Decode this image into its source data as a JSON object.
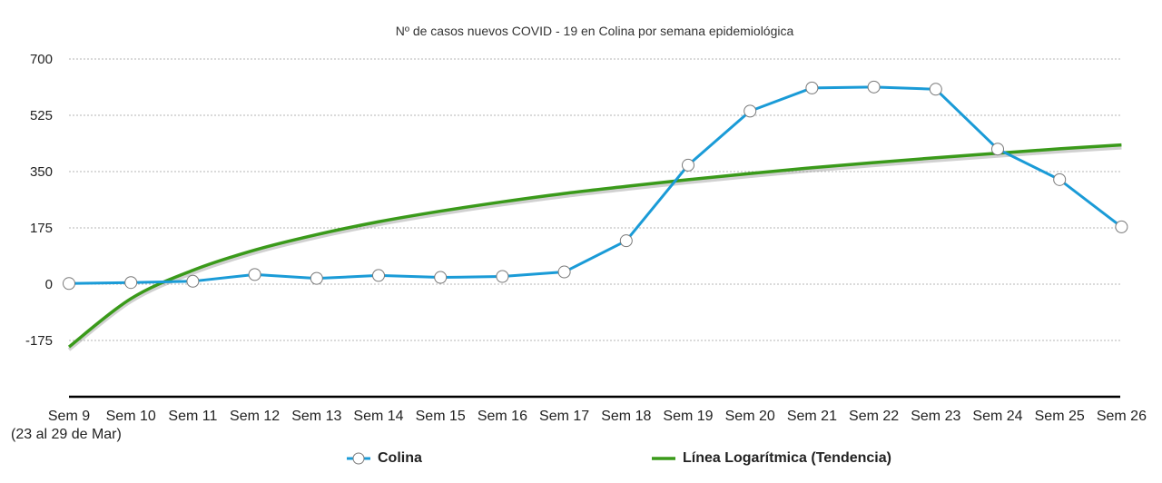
{
  "chart_data": {
    "type": "line",
    "title": "Nº de casos nuevos COVID - 19 en Colina por semana epidemiológica",
    "categories": [
      "Sem 9",
      "Sem 10",
      "Sem 11",
      "Sem 12",
      "Sem 13",
      "Sem 14",
      "Sem 15",
      "Sem 16",
      "Sem 17",
      "Sem 18",
      "Sem 19",
      "Sem 20",
      "Sem 21",
      "Sem 22",
      "Sem 23",
      "Sem 24",
      "Sem 25",
      "Sem 26"
    ],
    "first_category_note": "(23 al 29 de Mar)",
    "y_ticks": [
      -175,
      0,
      175,
      350,
      525,
      700
    ],
    "ylim": [
      -350,
      700
    ],
    "grid": true,
    "legend_position": "bottom",
    "series": [
      {
        "name": "Colina",
        "color": "#1a9bd7",
        "marker": "circle",
        "values": [
          2,
          5,
          9,
          30,
          18,
          27,
          21,
          24,
          38,
          135,
          370,
          538,
          610,
          613,
          606,
          420,
          325,
          178
        ]
      },
      {
        "name": "Línea Logarítmica (Tendencia)",
        "color": "#3a9a1a",
        "trend": "logarithmic",
        "values": [
          -195,
          -45,
          43,
          106,
          154,
          194,
          227,
          256,
          282,
          304,
          325,
          344,
          362,
          378,
          393,
          407,
          421,
          433
        ]
      }
    ]
  }
}
